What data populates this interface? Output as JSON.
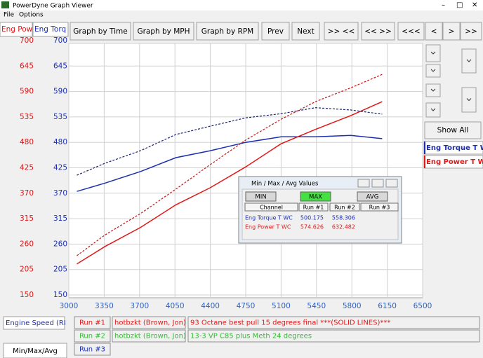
{
  "window_title": "PowerDyne Graph Viewer",
  "menu": [
    "File",
    "Options"
  ],
  "toolbar": [
    "Graph by Time",
    "Graph by MPH",
    "Graph by RPM",
    "Prev",
    "Next",
    ">> <<",
    "<< >>",
    "<<<",
    "<",
    ">",
    ">>"
  ],
  "axis_tabs": [
    "Eng Powe",
    "Eng Torq"
  ],
  "show_all": "Show All",
  "chart_data": {
    "type": "line",
    "x": [
      3080,
      3360,
      3710,
      4060,
      4400,
      4750,
      5100,
      5440,
      5790,
      6100
    ],
    "xlim": [
      3000,
      6500
    ],
    "xticks": [
      3000,
      3350,
      3700,
      4050,
      4400,
      4750,
      5100,
      5450,
      5800,
      6150,
      6500
    ],
    "ylim": [
      150,
      700
    ],
    "yticks": [
      700,
      645,
      590,
      535,
      480,
      425,
      370,
      315,
      260,
      205,
      150
    ],
    "y2lim": [
      150,
      700
    ],
    "y2ticks": [
      700,
      645,
      590,
      535,
      480,
      425,
      370,
      315,
      260,
      205,
      150
    ],
    "grid": true,
    "series": [
      {
        "name": "Eng Torque T WC",
        "color": "#1c2fb0",
        "axis": "y2",
        "values": [
          374,
          392,
          417,
          447,
          462,
          480,
          492,
          492,
          495,
          488
        ]
      },
      {
        "name": "Eng Power T WC",
        "color": "#e01818",
        "values": [
          217,
          255,
          296,
          345,
          382,
          427,
          477,
          508,
          538,
          568
        ]
      },
      {
        "color": "#1a2070",
        "axis": "y2",
        "dashed": true,
        "values": [
          409,
          435,
          462,
          497,
          515,
          533,
          542,
          555,
          550,
          541
        ]
      },
      {
        "color": "#c01818",
        "dashed": true,
        "values": [
          235,
          280,
          326,
          379,
          432,
          485,
          530,
          568,
          598,
          627
        ]
      }
    ]
  },
  "dialog": {
    "title": "Min / Max / Avg Values",
    "buttons": [
      "MIN",
      "MAX",
      "AVG"
    ],
    "header": [
      "Channel",
      "Run #1",
      "Run #2",
      "Run #3"
    ],
    "rows": [
      [
        "Eng Torque T WC",
        "500.175",
        "558.306"
      ],
      [
        "Eng Power T WC",
        "574.626",
        "632.482"
      ]
    ]
  },
  "bottom": {
    "x_channel": "Engine Speed (RI",
    "runs": [
      [
        "Run #1",
        "hotbzkt (Brown, Jon)",
        "93 Octane best pull 15 degrees final ***(SOLID LINES)***"
      ],
      [
        "Run #2",
        "hotbzkt (Brown, Jon)",
        "13-3 VP C85 plus Meth 24 degrees"
      ],
      [
        "Run #3"
      ]
    ],
    "tab": "Min/Max/Avg"
  }
}
